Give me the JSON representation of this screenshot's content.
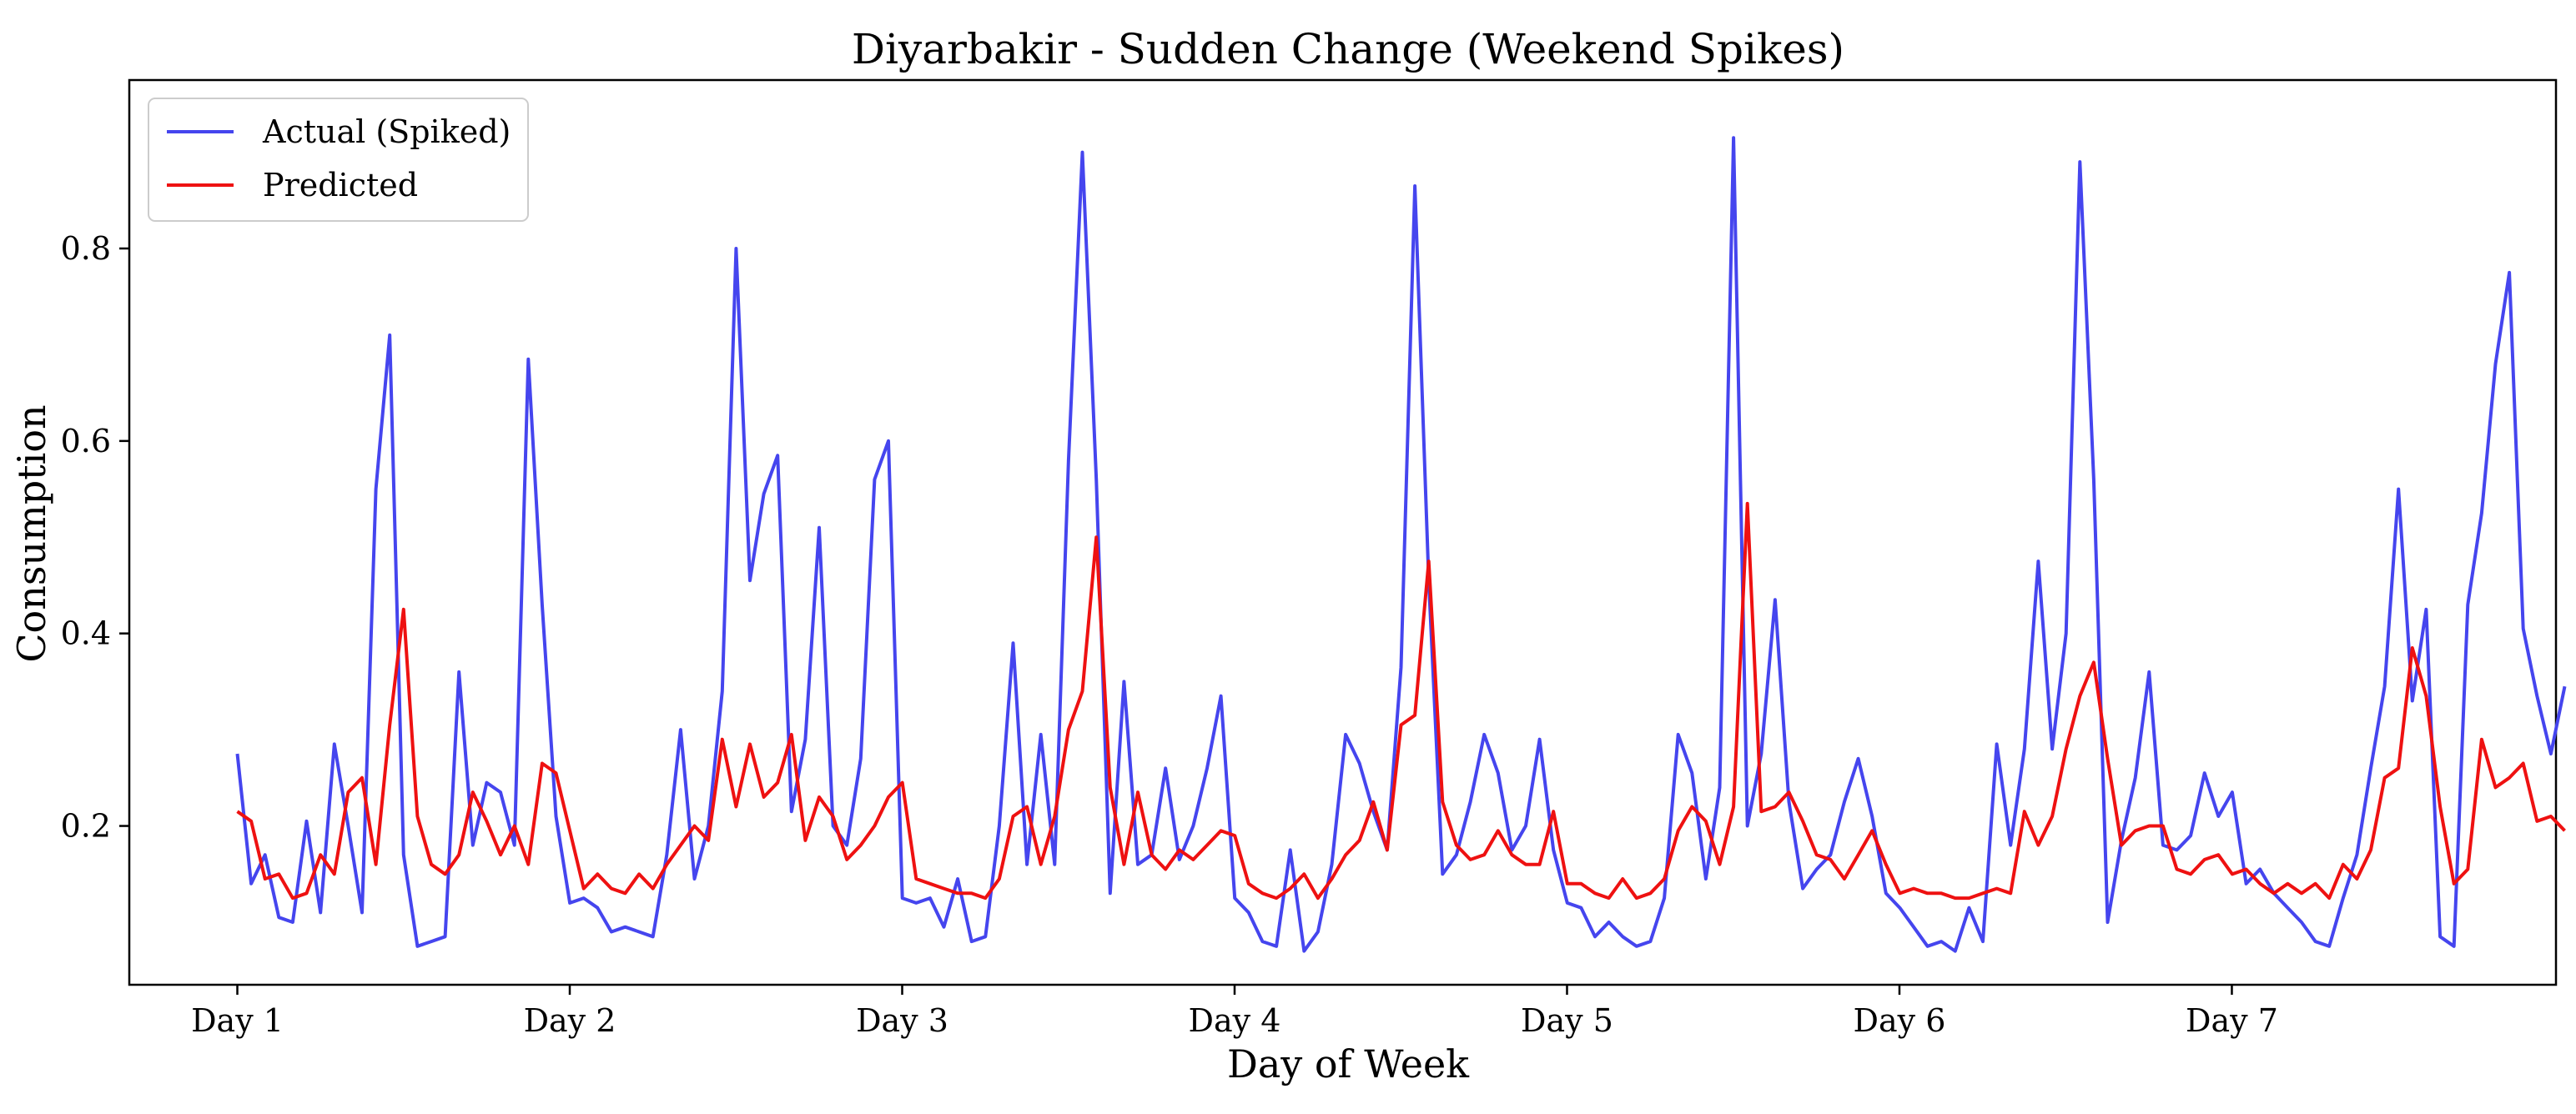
{
  "chart_data": {
    "type": "line",
    "title": "Diyarbakir - Sudden Change (Weekend Spikes)",
    "xlabel": "Day of Week",
    "ylabel": "Consumption",
    "xlim": [
      -1.3,
      27.9
    ],
    "ylim": [
      0.035,
      0.975
    ],
    "grid": false,
    "legend_position": "top-left",
    "x_ticks": [
      {
        "value": 0,
        "label": "Day 1"
      },
      {
        "value": 4,
        "label": "Day 2"
      },
      {
        "value": 8,
        "label": "Day 3"
      },
      {
        "value": 12,
        "label": "Day 4"
      },
      {
        "value": 16,
        "label": "Day 5"
      },
      {
        "value": 20,
        "label": "Day 6"
      },
      {
        "value": 24,
        "label": "Day 7"
      }
    ],
    "y_ticks": [
      {
        "value": 0.2,
        "label": "0.2"
      },
      {
        "value": 0.4,
        "label": "0.4"
      },
      {
        "value": 0.6,
        "label": "0.6"
      },
      {
        "value": 0.8,
        "label": "0.8"
      }
    ],
    "series": [
      {
        "name": "Actual (Spiked)",
        "color": "#4545ee",
        "x_start": 0,
        "x_step": 0.1667,
        "values": [
          0.275,
          0.14,
          0.17,
          0.105,
          0.1,
          0.205,
          0.11,
          0.285,
          0.2,
          0.11,
          0.55,
          0.71,
          0.17,
          0.075,
          0.08,
          0.085,
          0.36,
          0.18,
          0.245,
          0.235,
          0.18,
          0.685,
          0.43,
          0.21,
          0.12,
          0.125,
          0.115,
          0.09,
          0.095,
          0.09,
          0.085,
          0.17,
          0.3,
          0.145,
          0.2,
          0.34,
          0.8,
          0.455,
          0.545,
          0.585,
          0.215,
          0.29,
          0.51,
          0.2,
          0.18,
          0.27,
          0.56,
          0.6,
          0.125,
          0.12,
          0.125,
          0.095,
          0.145,
          0.08,
          0.085,
          0.2,
          0.39,
          0.16,
          0.295,
          0.16,
          0.58,
          0.9,
          0.56,
          0.13,
          0.35,
          0.16,
          0.17,
          0.26,
          0.165,
          0.2,
          0.26,
          0.335,
          0.125,
          0.11,
          0.08,
          0.075,
          0.175,
          0.07,
          0.09,
          0.16,
          0.295,
          0.265,
          0.215,
          0.175,
          0.365,
          0.865,
          0.455,
          0.15,
          0.17,
          0.225,
          0.295,
          0.255,
          0.175,
          0.2,
          0.29,
          0.175,
          0.12,
          0.115,
          0.085,
          0.1,
          0.085,
          0.075,
          0.08,
          0.125,
          0.295,
          0.255,
          0.145,
          0.24,
          0.915,
          0.2,
          0.275,
          0.435,
          0.225,
          0.135,
          0.155,
          0.17,
          0.225,
          0.27,
          0.21,
          0.13,
          0.115,
          0.095,
          0.075,
          0.08,
          0.07,
          0.115,
          0.08,
          0.285,
          0.18,
          0.28,
          0.475,
          0.28,
          0.4,
          0.89,
          0.56,
          0.1,
          0.185,
          0.25,
          0.36,
          0.18,
          0.175,
          0.19,
          0.255,
          0.21,
          0.235,
          0.14,
          0.155,
          0.13,
          0.115,
          0.1,
          0.08,
          0.075,
          0.125,
          0.17,
          0.26,
          0.345,
          0.55,
          0.33,
          0.425,
          0.085,
          0.075,
          0.43,
          0.525,
          0.68,
          0.775,
          0.405,
          0.335,
          0.275,
          0.345
        ]
      },
      {
        "name": "Predicted",
        "color": "#ee1111",
        "x_start": 0,
        "x_step": 0.1667,
        "values": [
          0.215,
          0.205,
          0.145,
          0.15,
          0.125,
          0.13,
          0.17,
          0.15,
          0.235,
          0.25,
          0.16,
          0.305,
          0.425,
          0.21,
          0.16,
          0.15,
          0.17,
          0.235,
          0.205,
          0.17,
          0.2,
          0.16,
          0.265,
          0.255,
          0.195,
          0.135,
          0.15,
          0.135,
          0.13,
          0.15,
          0.135,
          0.16,
          0.18,
          0.2,
          0.185,
          0.29,
          0.22,
          0.285,
          0.23,
          0.245,
          0.295,
          0.185,
          0.23,
          0.21,
          0.165,
          0.18,
          0.2,
          0.23,
          0.245,
          0.145,
          0.14,
          0.135,
          0.13,
          0.13,
          0.125,
          0.145,
          0.21,
          0.22,
          0.16,
          0.21,
          0.3,
          0.34,
          0.5,
          0.24,
          0.16,
          0.235,
          0.17,
          0.155,
          0.175,
          0.165,
          0.18,
          0.195,
          0.19,
          0.14,
          0.13,
          0.125,
          0.135,
          0.15,
          0.125,
          0.145,
          0.17,
          0.185,
          0.225,
          0.175,
          0.305,
          0.315,
          0.475,
          0.225,
          0.18,
          0.165,
          0.17,
          0.195,
          0.17,
          0.16,
          0.16,
          0.215,
          0.14,
          0.14,
          0.13,
          0.125,
          0.145,
          0.125,
          0.13,
          0.145,
          0.195,
          0.22,
          0.205,
          0.16,
          0.22,
          0.535,
          0.215,
          0.22,
          0.235,
          0.205,
          0.17,
          0.165,
          0.145,
          0.17,
          0.195,
          0.16,
          0.13,
          0.135,
          0.13,
          0.13,
          0.125,
          0.125,
          0.13,
          0.135,
          0.13,
          0.215,
          0.18,
          0.21,
          0.28,
          0.335,
          0.37,
          0.27,
          0.18,
          0.195,
          0.2,
          0.2,
          0.155,
          0.15,
          0.165,
          0.17,
          0.15,
          0.155,
          0.14,
          0.13,
          0.14,
          0.13,
          0.14,
          0.125,
          0.16,
          0.145,
          0.175,
          0.25,
          0.26,
          0.385,
          0.335,
          0.22,
          0.14,
          0.155,
          0.29,
          0.24,
          0.25,
          0.265,
          0.205,
          0.21,
          0.195
        ]
      }
    ]
  }
}
